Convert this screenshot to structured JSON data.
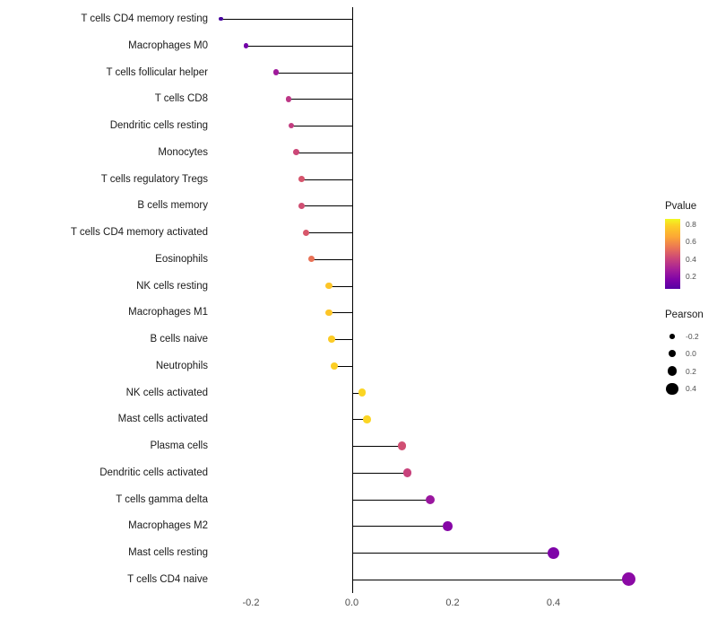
{
  "chart_data": {
    "type": "scatter",
    "variant": "lollipop",
    "title": "",
    "xlabel": "",
    "ylabel": "",
    "grid": false,
    "legend_position": "right",
    "xlim": [
      -0.31,
      0.58
    ],
    "x_ticks": [
      -0.2,
      0.0,
      0.2,
      0.4
    ],
    "x_tick_labels": [
      "-0.2",
      "0.0",
      "0.2",
      "0.4"
    ],
    "color_by": "Pvalue",
    "size_by": "Pearson",
    "points": [
      {
        "category": "T cells CD4 memory resting",
        "pearson": -0.26,
        "pvalue": 0.1,
        "color": "#47039f"
      },
      {
        "category": "Macrophages M0",
        "pearson": -0.21,
        "pvalue": 0.22,
        "color": "#7301a8"
      },
      {
        "category": "T cells follicular helper",
        "pearson": -0.15,
        "pvalue": 0.35,
        "color": "#a01a9c"
      },
      {
        "category": "T cells CD8",
        "pearson": -0.125,
        "pvalue": 0.44,
        "color": "#bd3786"
      },
      {
        "category": "Dendritic cells resting",
        "pearson": -0.12,
        "pvalue": 0.46,
        "color": "#c33d80"
      },
      {
        "category": "Monocytes",
        "pearson": -0.11,
        "pvalue": 0.5,
        "color": "#cc4778"
      },
      {
        "category": "T cells regulatory  Tregs",
        "pearson": -0.1,
        "pvalue": 0.55,
        "color": "#d6556d"
      },
      {
        "category": "B cells memory",
        "pearson": -0.1,
        "pvalue": 0.52,
        "color": "#d04f73"
      },
      {
        "category": "T cells CD4 memory activated",
        "pearson": -0.09,
        "pvalue": 0.56,
        "color": "#d8576b"
      },
      {
        "category": "Eosinophils",
        "pearson": -0.08,
        "pvalue": 0.65,
        "color": "#e97257"
      },
      {
        "category": "NK cells resting",
        "pearson": -0.045,
        "pvalue": 0.85,
        "color": "#fdc527"
      },
      {
        "category": "Macrophages M1",
        "pearson": -0.045,
        "pvalue": 0.85,
        "color": "#fdc527"
      },
      {
        "category": "B cells naive",
        "pearson": -0.04,
        "pvalue": 0.87,
        "color": "#fccb26"
      },
      {
        "category": "Neutrophils",
        "pearson": -0.035,
        "pvalue": 0.88,
        "color": "#fcce25"
      },
      {
        "category": "NK cells activated",
        "pearson": 0.02,
        "pvalue": 0.9,
        "color": "#fbd524"
      },
      {
        "category": "Mast cells activated",
        "pearson": 0.03,
        "pvalue": 0.9,
        "color": "#fbd524"
      },
      {
        "category": "Plasma cells",
        "pearson": 0.1,
        "pvalue": 0.52,
        "color": "#d04f73"
      },
      {
        "category": "Dendritic cells activated",
        "pearson": 0.11,
        "pvalue": 0.48,
        "color": "#c8427c"
      },
      {
        "category": "T cells gamma delta",
        "pearson": 0.155,
        "pvalue": 0.32,
        "color": "#9a169f"
      },
      {
        "category": "Macrophages M2",
        "pearson": 0.19,
        "pvalue": 0.2,
        "color": "#8606a6"
      },
      {
        "category": "Mast cells resting",
        "pearson": 0.4,
        "pvalue": 0.15,
        "color": "#7e03a8"
      },
      {
        "category": "T cells CD4 naive",
        "pearson": 0.55,
        "pvalue": 0.05,
        "color": "#8b0aa5"
      }
    ]
  },
  "legends": {
    "pvalue": {
      "title": "Pvalue",
      "ticks": [
        "0.8",
        "0.6",
        "0.4",
        "0.2"
      ],
      "gradient_top_color": "#f0f921",
      "gradient_bottom_color": "#5601a4"
    },
    "pearson": {
      "title": "Pearson",
      "entries": [
        "-0.2",
        "0.0",
        "0.2",
        "0.4"
      ],
      "dot_color": "#000000"
    }
  }
}
